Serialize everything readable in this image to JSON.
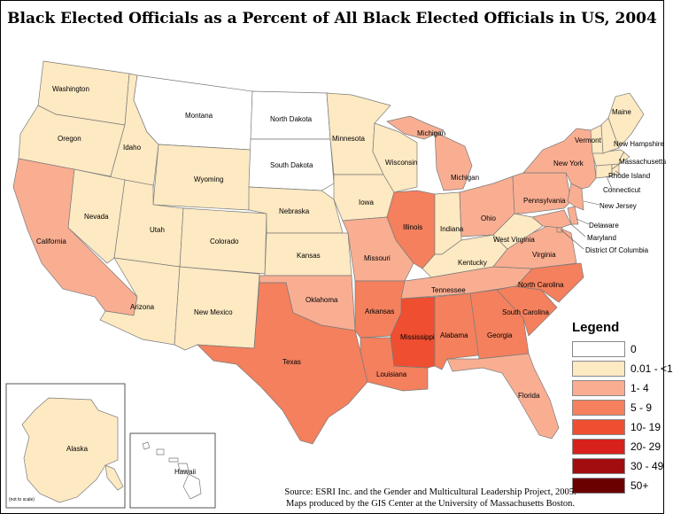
{
  "title": "Black Elected Officials as a Percent of All Black Elected Officials in US, 2004",
  "legend": {
    "title": "Legend",
    "classes": [
      {
        "label": "0",
        "color": "#ffffff"
      },
      {
        "label": "0.01 - <1",
        "color": "#fde9c2"
      },
      {
        "label": "1- 4",
        "color": "#f9ae92"
      },
      {
        "label": "5 - 9",
        "color": "#f4805d"
      },
      {
        "label": "10- 19",
        "color": "#ef4e31"
      },
      {
        "label": "20- 29",
        "color": "#d8201d"
      },
      {
        "label": "30 - 49",
        "color": "#a20d10"
      },
      {
        "label": "50+",
        "color": "#6a0000"
      }
    ]
  },
  "states": {
    "washington": {
      "label": "Washington",
      "class": "0.01 - <1"
    },
    "oregon": {
      "label": "Oregon",
      "class": "0.01 - <1"
    },
    "california": {
      "label": "California",
      "class": "1- 4"
    },
    "idaho": {
      "label": "Idaho",
      "class": "0.01 - <1"
    },
    "nevada": {
      "label": "Nevada",
      "class": "0.01 - <1"
    },
    "montana": {
      "label": "Montana",
      "class": "0"
    },
    "wyoming": {
      "label": "Wyoming",
      "class": "0.01 - <1"
    },
    "utah": {
      "label": "Utah",
      "class": "0.01 - <1"
    },
    "arizona": {
      "label": "Arizona",
      "class": "0.01 - <1"
    },
    "colorado": {
      "label": "Colorado",
      "class": "0.01 - <1"
    },
    "new_mexico": {
      "label": "New Mexico",
      "class": "0.01 - <1"
    },
    "north_dakota": {
      "label": "North Dakota",
      "class": "0"
    },
    "south_dakota": {
      "label": "South Dakota",
      "class": "0"
    },
    "nebraska": {
      "label": "Nebraska",
      "class": "0.01 - <1"
    },
    "kansas": {
      "label": "Kansas",
      "class": "0.01 - <1"
    },
    "oklahoma": {
      "label": "Oklahoma",
      "class": "1- 4"
    },
    "texas": {
      "label": "Texas",
      "class": "5 - 9"
    },
    "minnesota": {
      "label": "Minnesota",
      "class": "0.01 - <1"
    },
    "iowa": {
      "label": "Iowa",
      "class": "0.01 - <1"
    },
    "missouri": {
      "label": "Missouri",
      "class": "1- 4"
    },
    "arkansas": {
      "label": "Arkansas",
      "class": "5 - 9"
    },
    "louisiana": {
      "label": "Louisiana",
      "class": "5 - 9"
    },
    "wisconsin": {
      "label": "Wisconsin",
      "class": "0.01 - <1"
    },
    "illinois": {
      "label": "Illinois",
      "class": "5 - 9"
    },
    "mississippi": {
      "label": "Mississippi",
      "class": "10- 19"
    },
    "michigan": {
      "label": "Michigan",
      "class": "1- 4"
    },
    "michigan_up": {
      "label": "Michigan",
      "class": "1- 4"
    },
    "indiana": {
      "label": "Indiana",
      "class": "0.01 - <1"
    },
    "kentucky": {
      "label": "Kentucky",
      "class": "0.01 - <1"
    },
    "tennessee": {
      "label": "Tennessee",
      "class": "1- 4"
    },
    "alabama": {
      "label": "Alabama",
      "class": "5 - 9"
    },
    "ohio": {
      "label": "Ohio",
      "class": "1- 4"
    },
    "georgia": {
      "label": "Georgia",
      "class": "5 - 9"
    },
    "florida": {
      "label": "Florida",
      "class": "1- 4"
    },
    "south_carolina": {
      "label": "South Carolina",
      "class": "5 - 9"
    },
    "north_carolina": {
      "label": "North Carolina",
      "class": "5 - 9"
    },
    "virginia": {
      "label": "Virginia",
      "class": "1- 4"
    },
    "west_virginia": {
      "label": "West Virginia",
      "class": "0.01 - <1"
    },
    "pennsylvania": {
      "label": "Pennsylvania",
      "class": "1- 4"
    },
    "new_york": {
      "label": "New York",
      "class": "1- 4"
    },
    "vermont": {
      "label": "Vermont",
      "class": "0.01 - <1"
    },
    "maine": {
      "label": "Maine",
      "class": "0.01 - <1"
    },
    "new_hampshire": {
      "label": "New Hampshire",
      "class": "0.01 - <1"
    },
    "massachusetts": {
      "label": "Massachusetts",
      "class": "0.01 - <1"
    },
    "rhode_island": {
      "label": "Rhode Island",
      "class": "0.01 - <1"
    },
    "connecticut": {
      "label": "Connecticut",
      "class": "0.01 - <1"
    },
    "new_jersey": {
      "label": "New Jersey",
      "class": "1- 4"
    },
    "delaware": {
      "label": "Delaware",
      "class": "1- 4"
    },
    "maryland": {
      "label": "Maryland",
      "class": "1- 4"
    },
    "dc": {
      "label": "District Of Columbia",
      "class": "1- 4"
    },
    "alaska": {
      "label": "Alaska",
      "class": "0.01 - <1"
    },
    "hawaii": {
      "label": "Hawaii",
      "class": "0"
    }
  },
  "inset_note": "(not to scale)",
  "source": {
    "line1": "Source: ESRI Inc. and the Gender and Multicultural Leadership Project, 2005.",
    "line2": "Maps produced by the GIS Center at the University of Massachusetts Boston."
  }
}
